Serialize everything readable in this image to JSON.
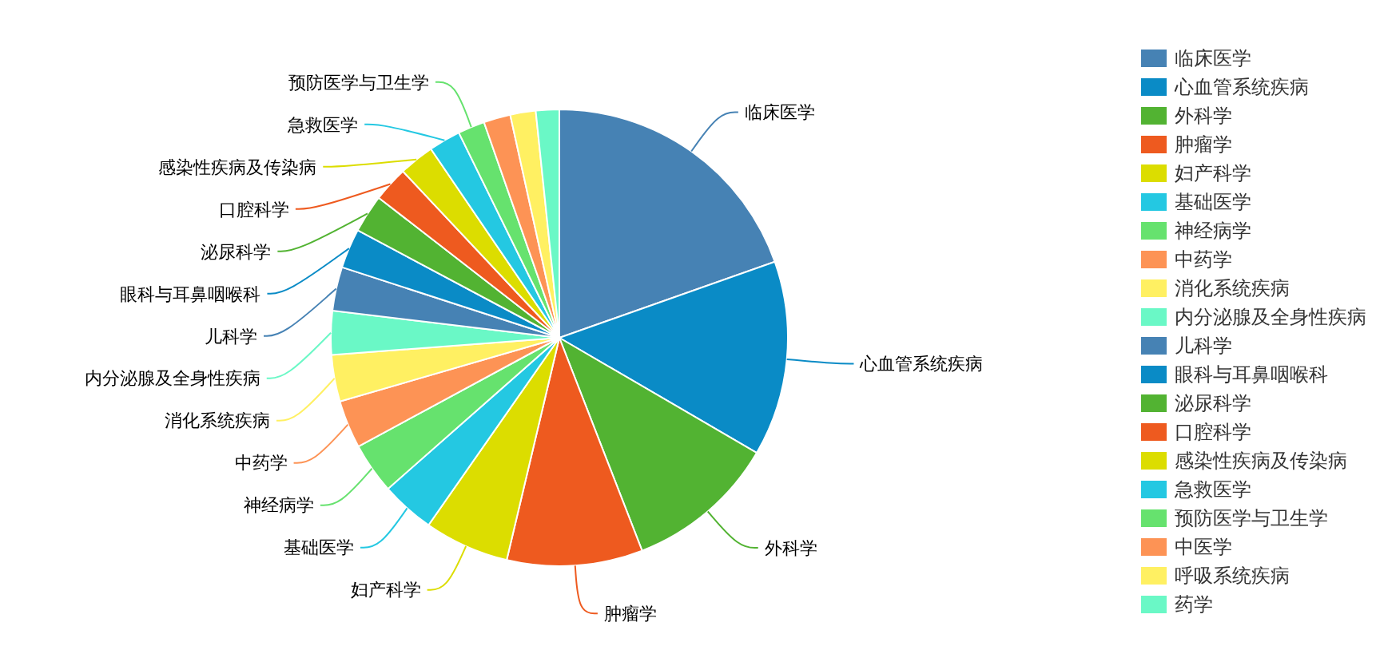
{
  "chart_data": {
    "type": "pie",
    "categories": [
      "临床医学",
      "心血管系统疾病",
      "外科学",
      "肿瘤学",
      "妇产科学",
      "基础医学",
      "神经病学",
      "中药学",
      "消化系统疾病",
      "内分泌腺及全身性疾病",
      "儿科学",
      "眼科与耳鼻咽喉科",
      "泌尿科学",
      "口腔科学",
      "感染性疾病及传染病",
      "急救医学",
      "预防医学与卫生学",
      "中医学",
      "呼吸系统疾病",
      "药学"
    ],
    "values": [
      19.6,
      13.8,
      10.7,
      9.6,
      6.0,
      3.8,
      3.6,
      3.4,
      3.3,
      3.1,
      3.1,
      2.8,
      2.7,
      2.5,
      2.5,
      2.25,
      1.9,
      1.9,
      1.8,
      1.65
    ],
    "colors": [
      "#4682b4",
      "#0a8bc6",
      "#52b332",
      "#ee5a1f",
      "#dcdd00",
      "#24c8e2",
      "#66e26e",
      "#fd9355",
      "#fff062",
      "#6af8c6",
      "#4682b4",
      "#0a8bc6",
      "#52b332",
      "#ee5a1f",
      "#dcdd00",
      "#24c8e2",
      "#66e26e",
      "#fd9355",
      "#fff062",
      "#6af8c6"
    ],
    "legend": "right"
  }
}
